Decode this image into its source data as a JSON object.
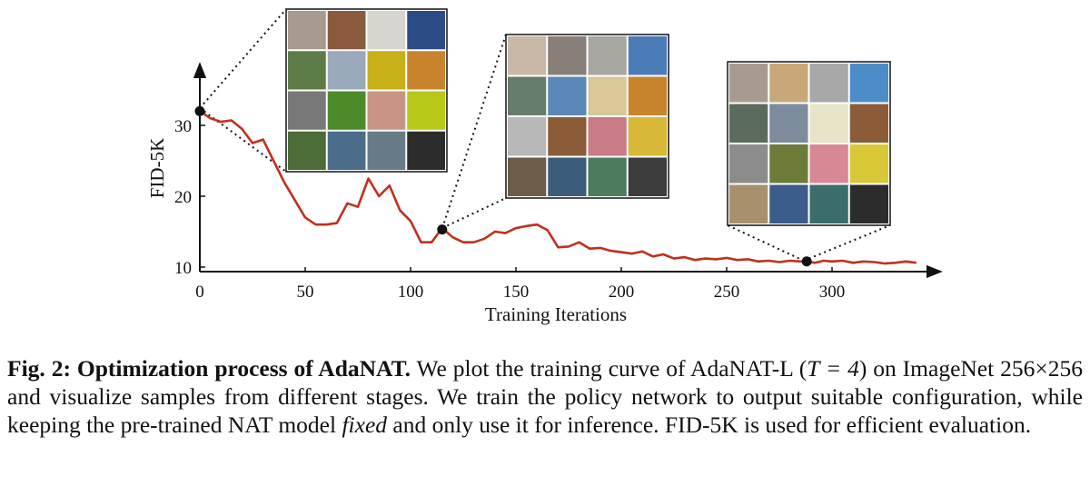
{
  "chart_data": {
    "type": "line",
    "xlabel": "Training Iterations",
    "ylabel": "FID-5K",
    "xlim": [
      0,
      345
    ],
    "ylim": [
      8.5,
      37
    ],
    "xticks": [
      0,
      50,
      100,
      150,
      200,
      250,
      300
    ],
    "yticks": [
      10,
      20,
      30
    ],
    "line_color": "#c0301f",
    "series": [
      {
        "name": "AdaNAT-L (T=4)",
        "x": [
          0,
          5,
          10,
          15,
          20,
          25,
          30,
          35,
          40,
          45,
          50,
          55,
          60,
          65,
          70,
          75,
          80,
          85,
          90,
          95,
          100,
          105,
          110,
          115,
          120,
          125,
          130,
          135,
          140,
          145,
          150,
          155,
          160,
          165,
          170,
          175,
          180,
          185,
          190,
          195,
          200,
          205,
          210,
          215,
          220,
          225,
          230,
          235,
          240,
          245,
          250,
          255,
          260,
          265,
          270,
          275,
          280,
          285,
          288,
          292,
          296,
          300,
          305,
          310,
          315,
          320,
          325,
          330,
          335,
          340
        ],
        "y": [
          32,
          31,
          30.5,
          30.7,
          29.5,
          27.5,
          28,
          25,
          22,
          19.5,
          17,
          16,
          16,
          16.2,
          19,
          18.5,
          22.5,
          20,
          21.5,
          18,
          16.5,
          13.5,
          13.5,
          15.5,
          14.2,
          13.5,
          13.5,
          14,
          15,
          14.8,
          15.5,
          15.8,
          16,
          15.2,
          12.8,
          12.9,
          13.5,
          12.6,
          12.7,
          12.3,
          12.1,
          11.9,
          12.2,
          11.5,
          11.8,
          11.2,
          11.4,
          11,
          11.2,
          11.1,
          11.3,
          11,
          11.1,
          10.8,
          10.9,
          10.7,
          10.9,
          10.8,
          10.8,
          10.6,
          10.9,
          10.8,
          10.9,
          10.6,
          10.8,
          10.7,
          10.5,
          10.6,
          10.8,
          10.6
        ]
      }
    ],
    "highlight_points": [
      {
        "x": 0,
        "y": 32
      },
      {
        "x": 115,
        "y": 15.3
      },
      {
        "x": 288,
        "y": 10.8
      }
    ]
  },
  "sample_grids": [
    {
      "stage": "early",
      "colors": [
        "#a89a8e",
        "#8c5a3c",
        "#d8d4cf",
        "#2c4c88",
        "#5c7c48",
        "#9aaabb",
        "#c8b018",
        "#c8842c",
        "#787878",
        "#4c8c28",
        "#c89484",
        "#b8c818",
        "#4c6c38",
        "#4c6c8c",
        "#687c88",
        "#2c2c2c"
      ]
    },
    {
      "stage": "middle",
      "colors": [
        "#c8b8a8",
        "#888078",
        "#a8a8a0",
        "#4c7cb8",
        "#687c6c",
        "#5c88b8",
        "#d8c898",
        "#c8842c",
        "#b8b8b8",
        "#8c5c38",
        "#c87c88",
        "#d8b838",
        "#6c5c48",
        "#3c5c7c",
        "#4c7c5c",
        "#3c3c3c"
      ]
    },
    {
      "stage": "late",
      "colors": [
        "#a89a8e",
        "#c8a878",
        "#a8a8a8",
        "#4c8cc8",
        "#5c6c5c",
        "#7c8c9c",
        "#e8e4c8",
        "#8c5c38",
        "#8c8c8c",
        "#6c7c38",
        "#d88894",
        "#d8c838",
        "#a8906c",
        "#3c5c8c",
        "#3c6c6c",
        "#2c2c2c"
      ]
    }
  ],
  "caption": {
    "label": "Fig. 2:",
    "title": "Optimization process of AdaNAT.",
    "text1": "We plot the training curve of AdaNAT-L (",
    "math": "T = 4",
    "text2": ") on ImageNet 256×256 and visualize samples from different stages. We train the policy network to output suitable configuration, while keeping the pre-trained NAT model",
    "emph": "fixed",
    "text3": "and only use it for inference. FID-5K is used for efficient evaluation."
  }
}
